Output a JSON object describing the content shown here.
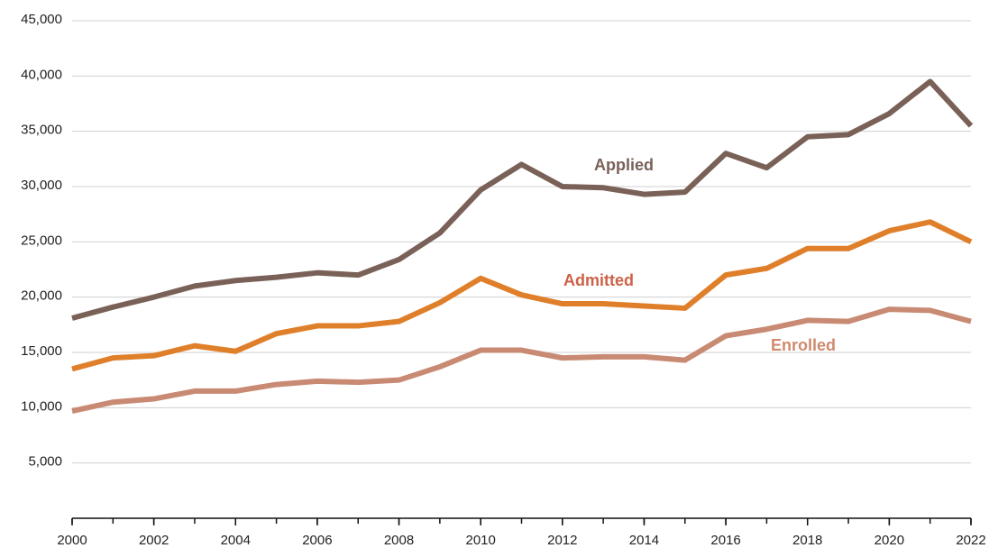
{
  "chart_data": {
    "type": "line",
    "x": [
      2000,
      2001,
      2002,
      2003,
      2004,
      2005,
      2006,
      2007,
      2008,
      2009,
      2010,
      2011,
      2012,
      2013,
      2014,
      2015,
      2016,
      2017,
      2018,
      2019,
      2020,
      2021,
      2022
    ],
    "series": [
      {
        "name": "Applied",
        "color": "#7a6158",
        "label_color": "#7a6158",
        "values": [
          18100,
          19100,
          20000,
          21000,
          21500,
          21800,
          22200,
          22000,
          23400,
          25800,
          29700,
          32000,
          30000,
          29900,
          29300,
          29500,
          33000,
          31700,
          34500,
          34700,
          36600,
          39500,
          35500
        ]
      },
      {
        "name": "Admitted",
        "color": "#e07f2a",
        "label_color": "#cd6248",
        "values": [
          13500,
          14500,
          14700,
          15600,
          15100,
          16700,
          17400,
          17400,
          17800,
          19500,
          21700,
          20200,
          19400,
          19400,
          19200,
          19000,
          22000,
          22600,
          24400,
          24400,
          26000,
          26800,
          25000
        ]
      },
      {
        "name": "Enrolled",
        "color": "#c98a74",
        "label_color": "#d08a6c",
        "values": [
          9700,
          10500,
          10800,
          11500,
          11500,
          12100,
          12400,
          12300,
          12500,
          13700,
          15200,
          15200,
          14500,
          14600,
          14600,
          14300,
          16500,
          17100,
          17900,
          17800,
          18900,
          18800,
          17800
        ]
      }
    ],
    "xlim": [
      2000,
      2022
    ],
    "xticks": [
      2000,
      2002,
      2004,
      2006,
      2008,
      2010,
      2012,
      2014,
      2016,
      2018,
      2020,
      2022
    ],
    "ylim": [
      0,
      45000
    ],
    "yticks": [
      {
        "value": 5000,
        "label": "5,000"
      },
      {
        "value": 10000,
        "label": "10,000"
      },
      {
        "value": 15000,
        "label": "15,000"
      },
      {
        "value": 20000,
        "label": "20,000"
      },
      {
        "value": 25000,
        "label": "25,000"
      },
      {
        "value": 30000,
        "label": "30,000"
      },
      {
        "value": 35000,
        "label": "35,000"
      },
      {
        "value": 40000,
        "label": "40,000"
      },
      {
        "value": 45000,
        "label": "45,000"
      }
    ],
    "grid": true
  }
}
